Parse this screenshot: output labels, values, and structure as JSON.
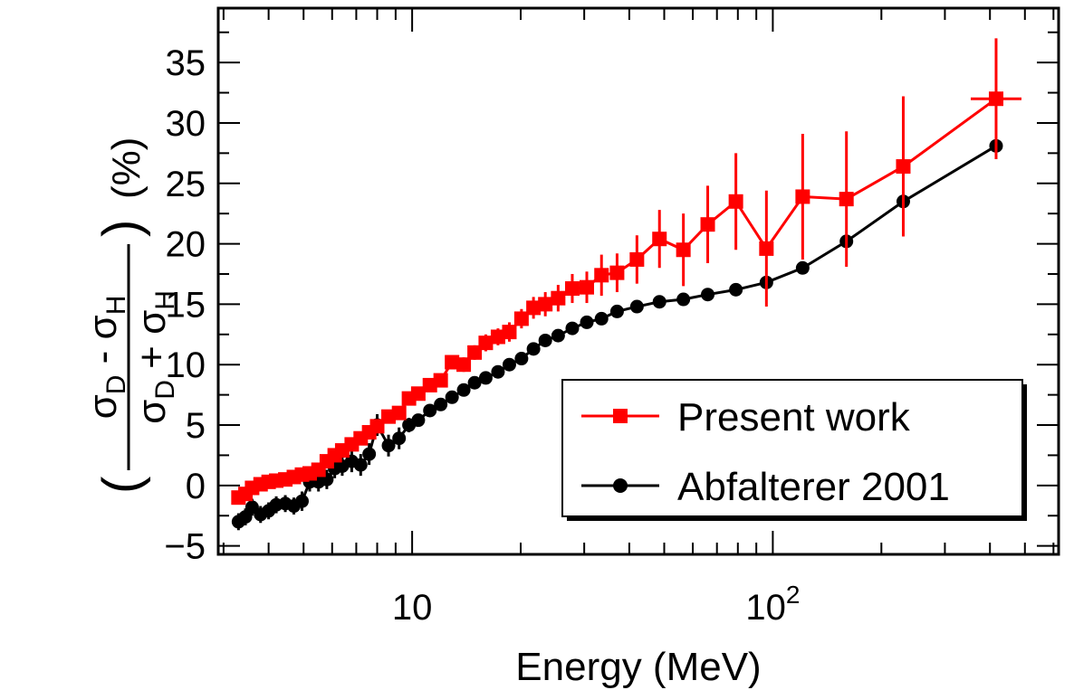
{
  "chart_data": {
    "type": "scatter",
    "title": "",
    "xlabel": "Energy (MeV)",
    "ylabel": {
      "numerator_a": "σ",
      "numerator_a_sub": "D",
      "numerator_op": " - ",
      "numerator_b": "σ",
      "numerator_b_sub": "H",
      "denominator_a": "σ",
      "denominator_a_sub": "D",
      "denominator_op": " + ",
      "denominator_b": "σ",
      "denominator_b_sub": "H",
      "open_paren": "(",
      "close_paren": ")",
      "unit": "(%)"
    },
    "xscale": "log",
    "xlim": [
      2.9,
      620
    ],
    "ylim": [
      -5.7,
      39.5
    ],
    "yticks": [
      -5,
      0,
      5,
      10,
      15,
      20,
      25,
      30,
      35
    ],
    "ytick_labels": [
      "−5",
      "0",
      "5",
      "10",
      "15",
      "20",
      "25",
      "30",
      "35"
    ],
    "xticks": [
      {
        "value": 10,
        "base": "10",
        "exp": ""
      },
      {
        "value": 100,
        "base": "10",
        "exp": "2"
      }
    ],
    "legend_position": "bottom-right",
    "series": [
      {
        "name": "Present work",
        "color": "#ff0000",
        "marker": "square",
        "points": [
          [
            3.3,
            -1.0,
            0.5
          ],
          [
            3.45,
            -0.7,
            0.5
          ],
          [
            3.6,
            -0.2,
            0.5
          ],
          [
            3.8,
            0.1,
            0.5
          ],
          [
            4.0,
            0.3,
            0.5
          ],
          [
            4.2,
            0.4,
            0.5
          ],
          [
            4.45,
            0.5,
            0.5
          ],
          [
            4.7,
            0.7,
            0.5
          ],
          [
            4.95,
            0.9,
            0.5
          ],
          [
            5.2,
            1.0,
            0.5
          ],
          [
            5.5,
            1.3,
            0.5
          ],
          [
            5.8,
            2.0,
            0.5
          ],
          [
            6.1,
            2.5,
            0.5
          ],
          [
            6.4,
            2.9,
            0.5
          ],
          [
            6.8,
            3.4,
            0.5
          ],
          [
            7.2,
            3.9,
            0.5
          ],
          [
            7.6,
            4.4,
            0.5
          ],
          [
            8.0,
            4.9,
            0.5
          ],
          [
            8.6,
            5.7,
            0.5
          ],
          [
            9.2,
            6.0,
            0.5
          ],
          [
            9.8,
            7.2,
            0.5
          ],
          [
            10.4,
            7.6,
            0.5
          ],
          [
            11.2,
            8.3,
            0.5
          ],
          [
            12.0,
            8.7,
            0.5
          ],
          [
            12.9,
            10.2,
            0.5
          ],
          [
            13.9,
            10.0,
            0.6
          ],
          [
            14.9,
            11.0,
            0.6
          ],
          [
            16.0,
            11.8,
            0.7
          ],
          [
            17.3,
            12.3,
            0.7
          ],
          [
            18.6,
            12.7,
            0.8
          ],
          [
            20.1,
            13.8,
            0.8
          ],
          [
            21.7,
            14.7,
            0.9
          ],
          [
            23.4,
            15.0,
            1.0
          ],
          [
            25.4,
            15.5,
            1.1
          ],
          [
            27.8,
            16.3,
            1.2
          ],
          [
            30.5,
            16.4,
            1.3
          ],
          [
            33.5,
            17.4,
            1.7
          ],
          [
            37.0,
            17.6,
            1.6
          ],
          [
            42.0,
            18.7,
            2.0
          ],
          [
            48.5,
            20.4,
            2.4
          ],
          [
            56.5,
            19.5,
            3.0
          ],
          [
            66.0,
            21.6,
            3.2
          ],
          [
            79.0,
            23.5,
            4.0
          ],
          [
            96.0,
            19.6,
            4.8
          ],
          [
            121.0,
            23.9,
            5.2
          ],
          [
            160.0,
            23.7,
            5.6
          ],
          [
            230.0,
            26.4,
            5.8
          ],
          [
            416.0,
            32.0,
            5.0
          ]
        ]
      },
      {
        "name": "Abfalterer 2001",
        "color": "#000000",
        "marker": "circle",
        "points": [
          [
            3.3,
            -3.0,
            0.7
          ],
          [
            3.45,
            -2.6,
            0.7
          ],
          [
            3.6,
            -1.8,
            0.7
          ],
          [
            3.8,
            -2.4,
            0.7
          ],
          [
            4.0,
            -2.1,
            0.7
          ],
          [
            4.2,
            -1.6,
            0.7
          ],
          [
            4.45,
            -1.5,
            0.7
          ],
          [
            4.7,
            -1.7,
            0.7
          ],
          [
            4.95,
            -1.3,
            0.8
          ],
          [
            5.2,
            0.3,
            0.8
          ],
          [
            5.5,
            0.3,
            0.8
          ],
          [
            5.8,
            0.5,
            0.8
          ],
          [
            6.1,
            1.4,
            0.8
          ],
          [
            6.4,
            1.6,
            0.8
          ],
          [
            6.8,
            2.0,
            0.9
          ],
          [
            7.2,
            1.7,
            0.9
          ],
          [
            7.6,
            2.6,
            0.9
          ],
          [
            8.0,
            5.0,
            0.9
          ],
          [
            8.6,
            3.3,
            0.9
          ],
          [
            9.2,
            3.9,
            0.9
          ],
          [
            9.8,
            5.0,
            0.6
          ],
          [
            10.4,
            5.4,
            0.5
          ],
          [
            11.2,
            6.2,
            0.4
          ],
          [
            12.0,
            6.7,
            0.4
          ],
          [
            12.9,
            7.3,
            0.3
          ],
          [
            13.9,
            7.9,
            0.3
          ],
          [
            14.9,
            8.5,
            0.3
          ],
          [
            16.0,
            8.9,
            0.3
          ],
          [
            17.3,
            9.4,
            0.3
          ],
          [
            18.6,
            10.0,
            0.3
          ],
          [
            20.1,
            10.5,
            0.3
          ],
          [
            21.7,
            11.3,
            0.3
          ],
          [
            23.4,
            12.0,
            0.3
          ],
          [
            25.4,
            12.4,
            0.3
          ],
          [
            27.8,
            13.0,
            0.3
          ],
          [
            30.5,
            13.5,
            0.3
          ],
          [
            33.5,
            13.8,
            0.3
          ],
          [
            37.0,
            14.4,
            0.3
          ],
          [
            42.0,
            14.8,
            0.3
          ],
          [
            48.5,
            15.2,
            0.3
          ],
          [
            56.5,
            15.4,
            0.3
          ],
          [
            66.0,
            15.8,
            0.3
          ],
          [
            79.0,
            16.2,
            0.3
          ],
          [
            96.0,
            16.8,
            0.3
          ],
          [
            121.0,
            18.0,
            0.3
          ],
          [
            160.0,
            20.2,
            0.3
          ],
          [
            230.0,
            23.5,
            0.3
          ],
          [
            416.0,
            28.1,
            0.3
          ]
        ]
      }
    ]
  }
}
